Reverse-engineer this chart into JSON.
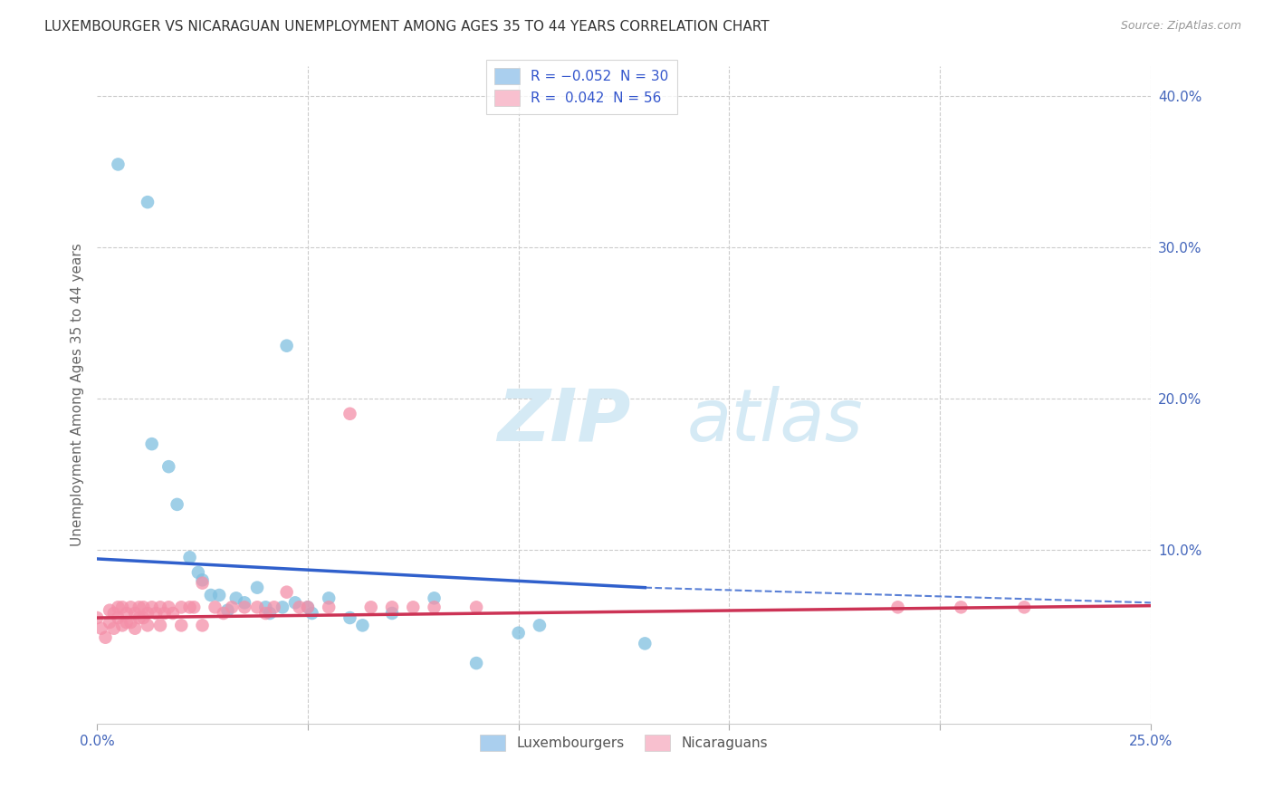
{
  "title": "LUXEMBOURGER VS NICARAGUAN UNEMPLOYMENT AMONG AGES 35 TO 44 YEARS CORRELATION CHART",
  "source": "Source: ZipAtlas.com",
  "ylabel": "Unemployment Among Ages 35 to 44 years",
  "xlim": [
    0.0,
    0.25
  ],
  "ylim": [
    -0.015,
    0.42
  ],
  "lux_color": "#7fbfdf",
  "nic_color": "#f48fa8",
  "lux_trend_color": "#3060cc",
  "nic_trend_color": "#cc3355",
  "lux_legend_color": "#aacfee",
  "nic_legend_color": "#f8c0cf",
  "watermark_color": "#d5eaf5",
  "background_color": "#ffffff",
  "grid_color": "#cccccc",
  "lux_x": [
    0.005,
    0.012,
    0.045,
    0.013,
    0.017,
    0.019,
    0.022,
    0.024,
    0.025,
    0.027,
    0.029,
    0.031,
    0.033,
    0.035,
    0.038,
    0.04,
    0.041,
    0.044,
    0.047,
    0.05,
    0.051,
    0.055,
    0.06,
    0.063,
    0.07,
    0.08,
    0.09,
    0.1,
    0.105,
    0.13
  ],
  "lux_y": [
    0.355,
    0.33,
    0.235,
    0.17,
    0.155,
    0.13,
    0.095,
    0.085,
    0.08,
    0.07,
    0.07,
    0.06,
    0.068,
    0.065,
    0.075,
    0.062,
    0.058,
    0.062,
    0.065,
    0.062,
    0.058,
    0.068,
    0.055,
    0.05,
    0.058,
    0.068,
    0.025,
    0.045,
    0.05,
    0.038
  ],
  "nic_x": [
    0.0,
    0.001,
    0.002,
    0.003,
    0.003,
    0.004,
    0.004,
    0.005,
    0.005,
    0.006,
    0.006,
    0.007,
    0.007,
    0.008,
    0.008,
    0.009,
    0.009,
    0.01,
    0.01,
    0.011,
    0.011,
    0.012,
    0.012,
    0.013,
    0.014,
    0.015,
    0.015,
    0.016,
    0.017,
    0.018,
    0.02,
    0.02,
    0.022,
    0.023,
    0.025,
    0.025,
    0.028,
    0.03,
    0.032,
    0.035,
    0.038,
    0.04,
    0.042,
    0.045,
    0.048,
    0.05,
    0.055,
    0.06,
    0.065,
    0.07,
    0.075,
    0.08,
    0.09,
    0.19,
    0.205,
    0.22
  ],
  "nic_y": [
    0.055,
    0.048,
    0.042,
    0.052,
    0.06,
    0.058,
    0.048,
    0.062,
    0.055,
    0.062,
    0.05,
    0.058,
    0.052,
    0.062,
    0.052,
    0.058,
    0.048,
    0.062,
    0.055,
    0.062,
    0.055,
    0.058,
    0.05,
    0.062,
    0.058,
    0.062,
    0.05,
    0.058,
    0.062,
    0.058,
    0.062,
    0.05,
    0.062,
    0.062,
    0.078,
    0.05,
    0.062,
    0.058,
    0.062,
    0.062,
    0.062,
    0.058,
    0.062,
    0.072,
    0.062,
    0.062,
    0.062,
    0.19,
    0.062,
    0.062,
    0.062,
    0.062,
    0.062,
    0.062,
    0.062,
    0.062
  ],
  "lux_trend_x_solid_end": 0.13,
  "lux_trend_y_start": 0.094,
  "lux_trend_y_end_solid": 0.075,
  "lux_trend_y_end_dash": 0.065,
  "nic_trend_y_start": 0.055,
  "nic_trend_y_end": 0.063
}
